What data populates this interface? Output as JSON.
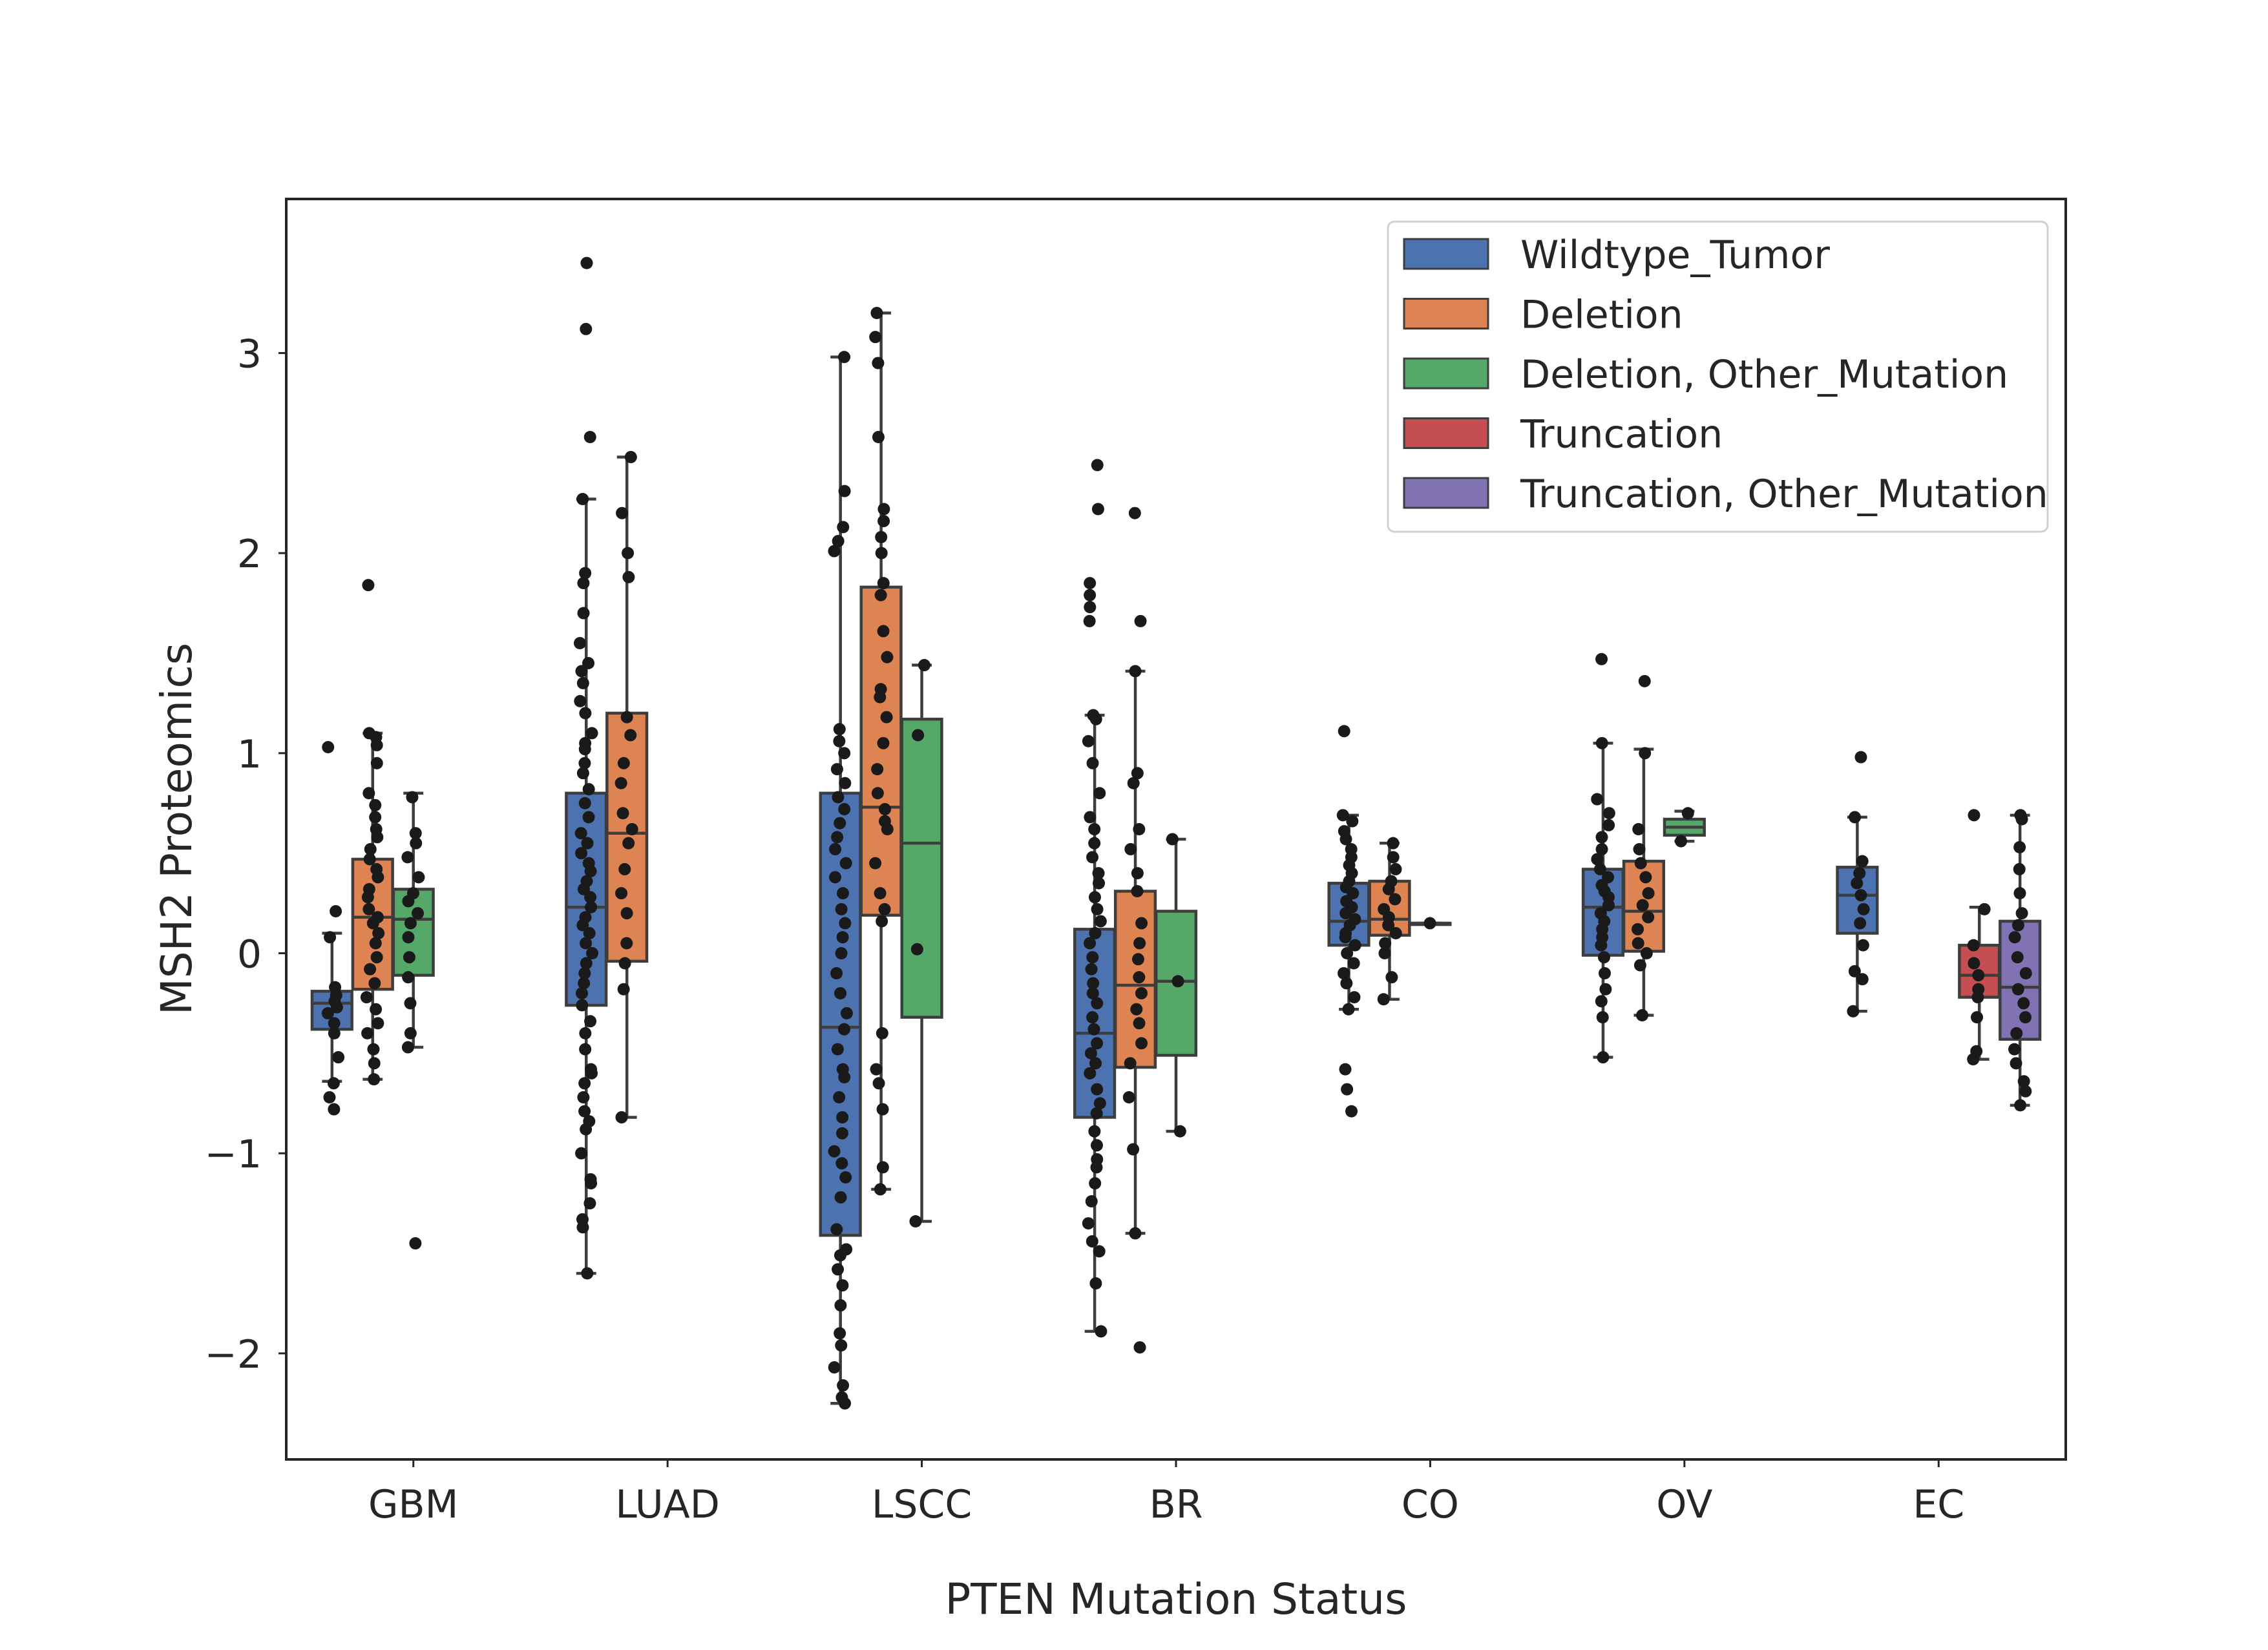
{
  "chart_data": {
    "type": "box",
    "title": "",
    "xlabel": "PTEN Mutation Status",
    "ylabel": "MSH2 Proteomics",
    "ylim": [
      -2.53,
      3.77
    ],
    "yticks": [
      -2,
      -1,
      0,
      1,
      2,
      3
    ],
    "ytick_labels": [
      "−2",
      "−1",
      "0",
      "1",
      "2",
      "3"
    ],
    "grid": false,
    "legend_position": "top-right",
    "categories": [
      "GBM",
      "LUAD",
      "LSCC",
      "BR",
      "CO",
      "OV",
      "EC"
    ],
    "series": [
      {
        "name": "Wildtype_Tumor",
        "color": "#4c72b0",
        "boxes": [
          {
            "category": "GBM",
            "q1": -0.38,
            "median": -0.25,
            "q3": -0.19,
            "whisker_low": -0.64,
            "whisker_high": 0.1,
            "points": [
              -0.78,
              -0.72,
              -0.65,
              -0.52,
              -0.4,
              -0.35,
              -0.3,
              -0.27,
              -0.24,
              -0.21,
              -0.17,
              0.08,
              0.21,
              1.03
            ]
          },
          {
            "category": "LUAD",
            "q1": -0.26,
            "median": 0.23,
            "q3": 0.8,
            "whisker_low": -1.6,
            "whisker_high": 2.27,
            "points": [
              -1.6,
              -1.37,
              -1.33,
              -1.25,
              -1.15,
              -1.13,
              -1.0,
              -0.88,
              -0.84,
              -0.79,
              -0.72,
              -0.65,
              -0.6,
              -0.58,
              -0.48,
              -0.4,
              -0.34,
              -0.26,
              -0.2,
              -0.15,
              -0.1,
              -0.05,
              0.0,
              0.05,
              0.1,
              0.14,
              0.18,
              0.23,
              0.28,
              0.32,
              0.36,
              0.41,
              0.45,
              0.5,
              0.55,
              0.6,
              0.68,
              0.75,
              0.82,
              0.9,
              0.95,
              1.02,
              1.05,
              1.1,
              1.2,
              1.26,
              1.35,
              1.41,
              1.45,
              1.55,
              1.7,
              1.85,
              1.9,
              2.27,
              2.58,
              3.12,
              3.45
            ]
          },
          {
            "category": "LSCC",
            "q1": -1.41,
            "median": -0.37,
            "q3": 0.8,
            "whisker_low": -2.25,
            "whisker_high": 2.98,
            "points": [
              -2.25,
              -2.22,
              -2.16,
              -2.07,
              -1.96,
              -1.9,
              -1.76,
              -1.66,
              -1.58,
              -1.51,
              -1.48,
              -1.38,
              -1.22,
              -1.12,
              -1.05,
              -0.99,
              -0.9,
              -0.82,
              -0.72,
              -0.62,
              -0.58,
              -0.48,
              -0.38,
              -0.3,
              -0.2,
              -0.1,
              0.0,
              0.08,
              0.15,
              0.22,
              0.3,
              0.38,
              0.45,
              0.52,
              0.58,
              0.65,
              0.72,
              0.78,
              0.85,
              0.92,
              1.0,
              1.06,
              1.12,
              2.01,
              2.06,
              2.13,
              2.31,
              2.98
            ]
          },
          {
            "category": "BR",
            "q1": -0.82,
            "median": -0.4,
            "q3": 0.12,
            "whisker_low": -1.89,
            "whisker_high": 1.19,
            "points": [
              -1.89,
              -1.65,
              -1.49,
              -1.44,
              -1.35,
              -1.24,
              -1.15,
              -1.07,
              -1.03,
              -0.96,
              -0.89,
              -0.8,
              -0.75,
              -0.68,
              -0.6,
              -0.55,
              -0.5,
              -0.45,
              -0.38,
              -0.32,
              -0.25,
              -0.2,
              -0.15,
              -0.08,
              -0.02,
              0.05,
              0.1,
              0.16,
              0.22,
              0.28,
              0.35,
              0.4,
              0.48,
              0.55,
              0.62,
              0.68,
              0.8,
              0.95,
              1.06,
              1.17,
              1.19,
              1.66,
              1.73,
              1.79,
              1.85,
              2.22,
              2.44
            ]
          },
          {
            "category": "CO",
            "q1": 0.04,
            "median": 0.16,
            "q3": 0.35,
            "whisker_low": -0.28,
            "whisker_high": 0.69,
            "points": [
              -0.79,
              -0.68,
              -0.58,
              -0.28,
              -0.22,
              -0.15,
              -0.1,
              -0.05,
              0.0,
              0.04,
              0.08,
              0.1,
              0.14,
              0.17,
              0.2,
              0.23,
              0.26,
              0.3,
              0.33,
              0.36,
              0.4,
              0.44,
              0.48,
              0.52,
              0.57,
              0.61,
              0.66,
              0.69,
              1.11
            ]
          },
          {
            "category": "OV",
            "q1": -0.01,
            "median": 0.23,
            "q3": 0.42,
            "whisker_low": -0.52,
            "whisker_high": 1.05,
            "points": [
              -0.52,
              -0.32,
              -0.24,
              -0.18,
              -0.1,
              -0.02,
              0.04,
              0.08,
              0.12,
              0.16,
              0.2,
              0.24,
              0.28,
              0.31,
              0.34,
              0.38,
              0.42,
              0.47,
              0.52,
              0.58,
              0.64,
              0.7,
              0.77,
              1.05,
              1.47
            ]
          },
          {
            "category": "EC",
            "q1": 0.1,
            "median": 0.29,
            "q3": 0.43,
            "whisker_low": -0.29,
            "whisker_high": 0.68,
            "points": [
              -0.29,
              -0.13,
              -0.09,
              0.04,
              0.15,
              0.22,
              0.29,
              0.35,
              0.4,
              0.46,
              0.68,
              0.98
            ]
          }
        ]
      },
      {
        "name": "Deletion",
        "color": "#dd8452",
        "boxes": [
          {
            "category": "GBM",
            "q1": -0.18,
            "median": 0.18,
            "q3": 0.47,
            "whisker_low": -0.63,
            "whisker_high": 1.1,
            "points": [
              -0.63,
              -0.55,
              -0.48,
              -0.4,
              -0.35,
              -0.28,
              -0.22,
              -0.15,
              -0.08,
              -0.02,
              0.05,
              0.1,
              0.15,
              0.18,
              0.22,
              0.28,
              0.32,
              0.38,
              0.42,
              0.47,
              0.52,
              0.58,
              0.62,
              0.68,
              0.74,
              0.8,
              0.95,
              1.04,
              1.08,
              1.1,
              1.84
            ]
          },
          {
            "category": "LUAD",
            "q1": -0.04,
            "median": 0.6,
            "q3": 1.2,
            "whisker_low": -0.82,
            "whisker_high": 2.48,
            "points": [
              -0.82,
              -0.18,
              -0.05,
              0.05,
              0.2,
              0.3,
              0.42,
              0.55,
              0.62,
              0.7,
              0.85,
              0.95,
              1.09,
              1.18,
              1.88,
              2.0,
              2.2,
              2.48
            ]
          },
          {
            "category": "LSCC",
            "q1": 0.19,
            "median": 0.73,
            "q3": 1.83,
            "whisker_low": -1.18,
            "whisker_high": 3.2,
            "points": [
              -1.18,
              -1.07,
              -0.78,
              -0.65,
              -0.58,
              -0.4,
              0.16,
              0.22,
              0.3,
              0.45,
              0.62,
              0.66,
              0.72,
              0.8,
              0.92,
              1.05,
              1.18,
              1.28,
              1.32,
              1.48,
              1.61,
              1.79,
              1.85,
              2.0,
              2.08,
              2.16,
              2.22,
              2.58,
              2.95,
              3.08,
              3.2
            ]
          },
          {
            "category": "BR",
            "q1": -0.57,
            "median": -0.16,
            "q3": 0.31,
            "whisker_low": -1.4,
            "whisker_high": 1.41,
            "points": [
              -1.97,
              -1.4,
              -0.98,
              -0.72,
              -0.55,
              -0.45,
              -0.35,
              -0.28,
              -0.2,
              -0.12,
              -0.03,
              0.05,
              0.15,
              0.31,
              0.4,
              0.52,
              0.62,
              0.85,
              0.9,
              1.41,
              1.66,
              2.2
            ]
          },
          {
            "category": "CO",
            "q1": 0.09,
            "median": 0.17,
            "q3": 0.36,
            "whisker_low": -0.23,
            "whisker_high": 0.55,
            "points": [
              -0.23,
              -0.12,
              0.0,
              0.05,
              0.1,
              0.14,
              0.18,
              0.22,
              0.27,
              0.32,
              0.36,
              0.42,
              0.48,
              0.55
            ]
          },
          {
            "category": "OV",
            "q1": 0.01,
            "median": 0.21,
            "q3": 0.46,
            "whisker_low": -0.31,
            "whisker_high": 1.02,
            "points": [
              -0.31,
              -0.06,
              0.0,
              0.05,
              0.12,
              0.18,
              0.24,
              0.3,
              0.38,
              0.45,
              0.52,
              0.62,
              1.0,
              1.36
            ]
          }
        ]
      },
      {
        "name": "Deletion, Other_Mutation",
        "color": "#55a868",
        "boxes": [
          {
            "category": "GBM",
            "q1": -0.11,
            "median": 0.17,
            "q3": 0.32,
            "whisker_low": -0.47,
            "whisker_high": 0.8,
            "points": [
              -1.45,
              -0.47,
              -0.4,
              -0.25,
              -0.12,
              -0.02,
              0.08,
              0.15,
              0.2,
              0.26,
              0.3,
              0.38,
              0.48,
              0.55,
              0.6,
              0.78
            ]
          },
          {
            "category": "LSCC",
            "q1": -0.32,
            "median": 0.55,
            "q3": 1.17,
            "whisker_low": -1.34,
            "whisker_high": 1.44,
            "points": [
              -1.34,
              0.02,
              1.09,
              1.44
            ]
          },
          {
            "category": "BR",
            "q1": -0.51,
            "median": -0.14,
            "q3": 0.21,
            "whisker_low": -0.89,
            "whisker_high": 0.57,
            "points": [
              -0.89,
              -0.14,
              0.57
            ]
          },
          {
            "category": "CO",
            "q1": 0.15,
            "median": 0.15,
            "q3": 0.15,
            "whisker_low": 0.15,
            "whisker_high": 0.15,
            "points": [
              0.15
            ]
          },
          {
            "category": "OV",
            "q1": 0.59,
            "median": 0.63,
            "q3": 0.67,
            "whisker_low": 0.56,
            "whisker_high": 0.71,
            "points": [
              0.56,
              0.7
            ]
          }
        ]
      },
      {
        "name": "Truncation",
        "color": "#c44e52",
        "boxes": [
          {
            "category": "EC",
            "q1": -0.22,
            "median": -0.11,
            "q3": 0.04,
            "whisker_low": -0.53,
            "whisker_high": 0.23,
            "points": [
              -0.53,
              -0.49,
              -0.32,
              -0.22,
              -0.18,
              -0.11,
              -0.05,
              0.04,
              0.22,
              0.69
            ]
          }
        ]
      },
      {
        "name": "Truncation, Other_Mutation",
        "color": "#8172b3",
        "boxes": [
          {
            "category": "EC",
            "q1": -0.43,
            "median": -0.17,
            "q3": 0.16,
            "whisker_low": -0.76,
            "whisker_high": 0.69,
            "points": [
              -0.76,
              -0.69,
              -0.64,
              -0.55,
              -0.48,
              -0.4,
              -0.32,
              -0.25,
              -0.18,
              -0.1,
              -0.02,
              0.08,
              0.14,
              0.2,
              0.3,
              0.42,
              0.53,
              0.67,
              0.69
            ]
          }
        ]
      }
    ]
  }
}
